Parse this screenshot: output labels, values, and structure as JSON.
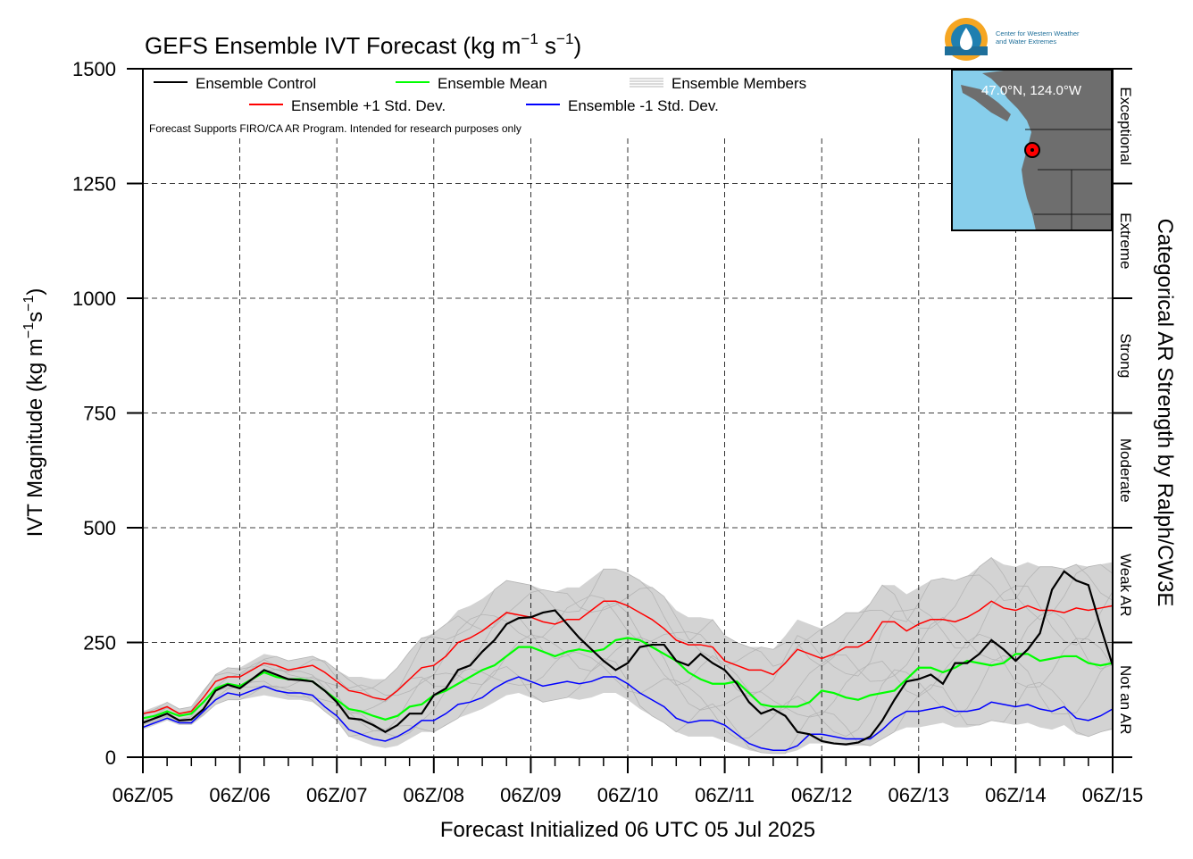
{
  "title": {
    "main": "GEFS Ensemble IVT Forecast (kg m",
    "sup1": "−1",
    "mid": " s",
    "sup2": "−1",
    "end": ")"
  },
  "ylabel": {
    "main": "IVT Magnitude (kg m",
    "sup1": "−1",
    "mid": "s",
    "sup2": "−1",
    "end": ")"
  },
  "xlabel": "Forecast Initialized 06 UTC 05 Jul 2025",
  "right_label": "Categorical AR Strength by Ralph/CW3E",
  "disclaimer": "Forecast Supports FIRO/CA AR Program. Intended for research purposes only",
  "logo": {
    "line1": "Center for Western Weather",
    "line2": "and Water Extremes"
  },
  "inset": {
    "label": "47.0°N, 124.0°W",
    "land_color": "#6e6e6e",
    "water_color": "#87ceeb"
  },
  "legend": {
    "control": "Ensemble Control",
    "mean": "Ensemble Mean",
    "members": "Ensemble Members",
    "plus": "Ensemble +1 Std. Dev.",
    "minus": "Ensemble -1 Std. Dev."
  },
  "categories": [
    {
      "label": "Exceptional",
      "from": 1250,
      "to": 1500
    },
    {
      "label": "Extreme",
      "from": 1000,
      "to": 1250
    },
    {
      "label": "Strong",
      "from": 750,
      "to": 1000
    },
    {
      "label": "Moderate",
      "from": 500,
      "to": 750
    },
    {
      "label": "Weak AR",
      "from": 250,
      "to": 500
    },
    {
      "label": "Not an AR",
      "from": 0,
      "to": 250
    }
  ],
  "chart_data": {
    "type": "line",
    "title": "GEFS Ensemble IVT Forecast (kg m-1 s-1)",
    "xlabel": "Forecast Initialized 06 UTC 05 Jul 2025",
    "ylabel": "IVT Magnitude (kg m-1 s-1)",
    "x_unit": "forecast hour",
    "xlim": [
      0,
      240
    ],
    "ylim": [
      0,
      1500
    ],
    "yticks": [
      0,
      250,
      500,
      750,
      1000,
      1250,
      1500
    ],
    "xticks": [
      0,
      24,
      48,
      72,
      96,
      120,
      144,
      168,
      192,
      216,
      240
    ],
    "xtick_labels": [
      "06Z/05",
      "06Z/06",
      "06Z/07",
      "06Z/08",
      "06Z/09",
      "06Z/10",
      "06Z/11",
      "06Z/12",
      "06Z/13",
      "06Z/14",
      "06Z/15"
    ],
    "grid": true,
    "colors": {
      "control": "#000000",
      "mean": "#00ff00",
      "plus": "#ff0000",
      "minus": "#0000ff",
      "members": "#b5b5b5",
      "band": "#d3d3d3"
    },
    "series": [
      {
        "name": "Ensemble Control",
        "color": "#000000",
        "x": [
          0,
          3,
          6,
          9,
          12,
          15,
          18,
          21,
          24,
          27,
          30,
          33,
          36,
          39,
          42,
          45,
          48,
          51,
          54,
          57,
          60,
          63,
          66,
          69,
          72,
          75,
          78,
          81,
          84,
          87,
          90,
          93,
          96,
          99,
          102,
          105,
          108,
          111,
          114,
          117,
          120,
          123,
          126,
          129,
          132,
          135,
          138,
          141,
          144,
          147,
          150,
          153,
          156,
          159,
          162,
          165,
          168,
          171,
          174,
          177,
          180,
          183,
          186,
          189,
          192,
          195,
          198,
          201,
          204,
          207,
          210,
          213,
          216,
          219,
          222,
          225,
          228,
          231,
          234,
          237,
          240
        ],
        "y": [
          75,
          85,
          95,
          80,
          82,
          105,
          145,
          158,
          150,
          170,
          190,
          180,
          170,
          168,
          165,
          145,
          120,
          85,
          82,
          70,
          55,
          70,
          95,
          95,
          135,
          150,
          190,
          200,
          230,
          255,
          290,
          303,
          305,
          315,
          320,
          290,
          260,
          235,
          210,
          190,
          205,
          240,
          245,
          245,
          210,
          200,
          225,
          205,
          190,
          160,
          120,
          95,
          105,
          90,
          55,
          50,
          35,
          30,
          28,
          32,
          45,
          80,
          125,
          165,
          170,
          180,
          160,
          205,
          205,
          225,
          255,
          235,
          210,
          235,
          270,
          365,
          405,
          385,
          375,
          285,
          200
        ]
      },
      {
        "name": "Ensemble Mean",
        "color": "#00ff00",
        "x": [
          0,
          3,
          6,
          9,
          12,
          15,
          18,
          21,
          24,
          27,
          30,
          33,
          36,
          39,
          42,
          45,
          48,
          51,
          54,
          57,
          60,
          63,
          66,
          69,
          72,
          75,
          78,
          81,
          84,
          87,
          90,
          93,
          96,
          99,
          102,
          105,
          108,
          111,
          114,
          117,
          120,
          123,
          126,
          129,
          132,
          135,
          138,
          141,
          144,
          147,
          150,
          153,
          156,
          159,
          162,
          165,
          168,
          171,
          174,
          177,
          180,
          183,
          186,
          189,
          192,
          195,
          198,
          201,
          204,
          207,
          210,
          213,
          216,
          219,
          222,
          225,
          228,
          231,
          234,
          237,
          240
        ],
        "y": [
          85,
          90,
          100,
          90,
          95,
          120,
          150,
          160,
          155,
          170,
          185,
          175,
          170,
          170,
          165,
          145,
          125,
          105,
          100,
          90,
          82,
          90,
          110,
          115,
          135,
          145,
          160,
          175,
          190,
          200,
          220,
          240,
          240,
          230,
          220,
          230,
          235,
          230,
          235,
          255,
          260,
          255,
          240,
          225,
          210,
          185,
          170,
          160,
          160,
          165,
          140,
          115,
          110,
          110,
          110,
          120,
          145,
          140,
          130,
          125,
          135,
          140,
          145,
          170,
          195,
          195,
          185,
          195,
          210,
          205,
          200,
          205,
          225,
          225,
          210,
          215,
          220,
          220,
          205,
          200,
          205
        ]
      },
      {
        "name": "Ensemble +1 Std. Dev.",
        "color": "#ff0000",
        "x": [
          0,
          3,
          6,
          9,
          12,
          15,
          18,
          21,
          24,
          27,
          30,
          33,
          36,
          39,
          42,
          45,
          48,
          51,
          54,
          57,
          60,
          63,
          66,
          69,
          72,
          75,
          78,
          81,
          84,
          87,
          90,
          93,
          96,
          99,
          102,
          105,
          108,
          111,
          114,
          117,
          120,
          123,
          126,
          129,
          132,
          135,
          138,
          141,
          144,
          147,
          150,
          153,
          156,
          159,
          162,
          165,
          168,
          171,
          174,
          177,
          180,
          183,
          186,
          189,
          192,
          195,
          198,
          201,
          204,
          207,
          210,
          213,
          216,
          219,
          222,
          225,
          228,
          231,
          234,
          237,
          240
        ],
        "y": [
          95,
          100,
          110,
          95,
          100,
          130,
          165,
          175,
          175,
          190,
          205,
          200,
          190,
          195,
          200,
          185,
          165,
          145,
          140,
          130,
          125,
          145,
          170,
          195,
          200,
          220,
          250,
          260,
          275,
          295,
          315,
          310,
          305,
          295,
          290,
          300,
          300,
          320,
          340,
          340,
          330,
          315,
          300,
          280,
          255,
          245,
          245,
          240,
          210,
          200,
          190,
          190,
          180,
          205,
          235,
          225,
          215,
          225,
          240,
          240,
          255,
          295,
          295,
          275,
          290,
          300,
          300,
          295,
          305,
          320,
          340,
          325,
          320,
          330,
          320,
          320,
          315,
          325,
          320,
          325,
          330
        ]
      },
      {
        "name": "Ensemble -1 Std. Dev.",
        "color": "#0000ff",
        "x": [
          0,
          3,
          6,
          9,
          12,
          15,
          18,
          21,
          24,
          27,
          30,
          33,
          36,
          39,
          42,
          45,
          48,
          51,
          54,
          57,
          60,
          63,
          66,
          69,
          72,
          75,
          78,
          81,
          84,
          87,
          90,
          93,
          96,
          99,
          102,
          105,
          108,
          111,
          114,
          117,
          120,
          123,
          126,
          129,
          132,
          135,
          138,
          141,
          144,
          147,
          150,
          153,
          156,
          159,
          162,
          165,
          168,
          171,
          174,
          177,
          180,
          183,
          186,
          189,
          192,
          195,
          198,
          201,
          204,
          207,
          210,
          213,
          216,
          219,
          222,
          225,
          228,
          231,
          234,
          237,
          240
        ],
        "y": [
          65,
          75,
          85,
          75,
          75,
          100,
          125,
          140,
          135,
          145,
          155,
          145,
          140,
          140,
          135,
          110,
          90,
          60,
          50,
          40,
          35,
          45,
          60,
          80,
          80,
          95,
          115,
          120,
          130,
          150,
          165,
          175,
          165,
          155,
          160,
          165,
          160,
          165,
          175,
          175,
          160,
          140,
          125,
          110,
          85,
          75,
          80,
          80,
          70,
          50,
          30,
          20,
          15,
          15,
          25,
          50,
          50,
          45,
          40,
          40,
          40,
          60,
          85,
          100,
          100,
          105,
          110,
          100,
          100,
          105,
          120,
          115,
          110,
          115,
          105,
          100,
          110,
          85,
          80,
          90,
          105
        ]
      }
    ],
    "member_band": {
      "name": "Ensemble Members",
      "low": [
        60,
        70,
        80,
        70,
        70,
        90,
        115,
        125,
        125,
        130,
        135,
        130,
        125,
        125,
        120,
        100,
        80,
        45,
        35,
        25,
        20,
        25,
        40,
        55,
        55,
        70,
        85,
        95,
        105,
        120,
        135,
        140,
        130,
        120,
        125,
        130,
        125,
        130,
        140,
        140,
        125,
        105,
        90,
        75,
        55,
        45,
        45,
        45,
        35,
        25,
        15,
        10,
        8,
        8,
        15,
        30,
        30,
        28,
        25,
        25,
        25,
        40,
        55,
        65,
        65,
        70,
        75,
        65,
        65,
        70,
        80,
        75,
        70,
        75,
        65,
        60,
        70,
        50,
        45,
        55,
        60
      ],
      "high": [
        100,
        110,
        120,
        105,
        110,
        145,
        180,
        195,
        195,
        210,
        225,
        220,
        210,
        215,
        220,
        210,
        190,
        175,
        175,
        170,
        170,
        195,
        230,
        260,
        270,
        290,
        320,
        330,
        345,
        365,
        385,
        380,
        375,
        365,
        360,
        370,
        370,
        390,
        410,
        410,
        400,
        385,
        370,
        350,
        320,
        305,
        305,
        300,
        265,
        250,
        240,
        240,
        235,
        265,
        300,
        290,
        280,
        295,
        315,
        315,
        335,
        375,
        375,
        355,
        370,
        385,
        390,
        385,
        395,
        415,
        435,
        420,
        415,
        425,
        415,
        415,
        410,
        420,
        415,
        420,
        425
      ]
    }
  }
}
